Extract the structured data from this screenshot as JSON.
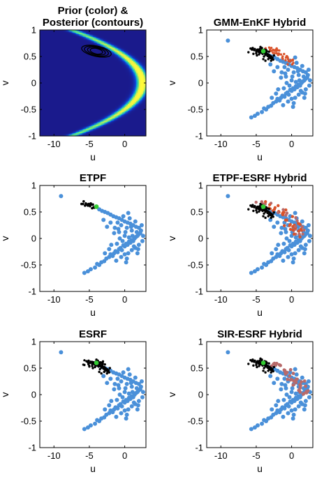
{
  "figure": {
    "colors": {
      "prior": "#4a90d9",
      "posterior_particles": "#000000",
      "hybrid_intermediate": "#d9532b",
      "truth_marker": "#33cc33",
      "contour": "#000000",
      "colormap": [
        "#1a1a8c",
        "#0c3fd6",
        "#10a8d8",
        "#4fe08c",
        "#e5f04a",
        "#fffa38"
      ]
    },
    "panels": [
      {
        "id": "prior",
        "title_lines": [
          "Prior (color) &",
          "Posterior (contours)"
        ],
        "kind": "density"
      },
      {
        "id": "gmm",
        "title_lines": [
          "GMM-EnKF Hybrid"
        ],
        "kind": "scatter",
        "overlay": "gmm"
      },
      {
        "id": "etpf",
        "title_lines": [
          "ETPF"
        ],
        "kind": "scatter",
        "overlay": "etpf"
      },
      {
        "id": "etpf_esrf",
        "title_lines": [
          "ETPF-ESRF Hybrid"
        ],
        "kind": "scatter",
        "overlay": "etpf_esrf"
      },
      {
        "id": "esrf",
        "title_lines": [
          "ESRF"
        ],
        "kind": "scatter",
        "overlay": "esrf"
      },
      {
        "id": "sir_esrf",
        "title_lines": [
          "SIR-ESRF Hybrid"
        ],
        "kind": "scatter",
        "overlay": "sir_esrf"
      }
    ]
  },
  "chart_data": {
    "type": "scatter",
    "xlabel": "u",
    "ylabel": "v",
    "xlim": [
      -12,
      3
    ],
    "ylim": [
      -1,
      1
    ],
    "xticks": [
      -10,
      -5,
      0
    ],
    "xtick_labels": [
      "-10",
      "-5",
      "0"
    ],
    "yticks": [
      1,
      0.5,
      0,
      -0.5,
      -1
    ],
    "ytick_labels": [
      "1",
      "0.5",
      "0",
      "-0.5",
      "-1"
    ],
    "density_curve": "u = 2.5 - 10*v^2",
    "posterior_center": {
      "u": -4.0,
      "v": 0.6
    },
    "truth": {
      "u": -4.0,
      "v": 0.6
    },
    "prior_samples": [
      [
        -9.0,
        0.8
      ],
      [
        -5.7,
        -0.65
      ],
      [
        -5.2,
        -0.62
      ],
      [
        -4.2,
        -0.55
      ],
      [
        -3.6,
        -0.5
      ],
      [
        -3.3,
        -0.45
      ],
      [
        -2.9,
        -0.43
      ],
      [
        -2.6,
        -0.38
      ],
      [
        -2.2,
        -0.35
      ],
      [
        -2.0,
        -0.3
      ],
      [
        -1.7,
        -0.33
      ],
      [
        -1.5,
        -0.28
      ],
      [
        -1.3,
        -0.24
      ],
      [
        -1.0,
        -0.26
      ],
      [
        -0.8,
        -0.2
      ],
      [
        -0.6,
        -0.18
      ],
      [
        -0.4,
        -0.22
      ],
      [
        -0.2,
        -0.13
      ],
      [
        0.0,
        -0.15
      ],
      [
        0.2,
        -0.1
      ],
      [
        0.4,
        -0.12
      ],
      [
        0.6,
        -0.06
      ],
      [
        0.8,
        -0.08
      ],
      [
        1.0,
        -0.03
      ],
      [
        1.2,
        -0.05
      ],
      [
        1.4,
        0.0
      ],
      [
        1.6,
        0.03
      ],
      [
        1.8,
        0.05
      ],
      [
        2.0,
        0.08
      ],
      [
        2.2,
        0.1
      ],
      [
        -0.5,
        -0.35
      ],
      [
        0.0,
        -0.3
      ],
      [
        0.5,
        -0.28
      ],
      [
        1.0,
        -0.22
      ],
      [
        1.5,
        -0.18
      ],
      [
        2.0,
        -0.12
      ],
      [
        2.5,
        -0.05
      ],
      [
        2.3,
        0.15
      ],
      [
        2.0,
        0.2
      ],
      [
        1.6,
        0.22
      ],
      [
        1.2,
        0.25
      ],
      [
        0.8,
        0.28
      ],
      [
        0.4,
        0.3
      ],
      [
        0.0,
        0.32
      ],
      [
        -0.4,
        0.35
      ],
      [
        -0.8,
        0.38
      ],
      [
        -1.2,
        0.4
      ],
      [
        -1.6,
        0.42
      ],
      [
        -2.0,
        0.45
      ],
      [
        -2.4,
        0.48
      ],
      [
        -2.8,
        0.5
      ],
      [
        -3.2,
        0.52
      ],
      [
        -3.6,
        0.55
      ],
      [
        -1.0,
        0.3
      ],
      [
        -0.5,
        0.25
      ],
      [
        0.3,
        0.2
      ],
      [
        1.0,
        0.15
      ],
      [
        1.7,
        0.12
      ],
      [
        -1.4,
        0.2
      ],
      [
        -0.8,
        0.12
      ],
      [
        0.0,
        0.05
      ],
      [
        0.6,
        0.02
      ],
      [
        1.3,
        -0.15
      ],
      [
        -0.3,
        -0.05
      ],
      [
        0.9,
        0.22
      ],
      [
        -2.2,
        -0.2
      ],
      [
        -1.1,
        -0.1
      ],
      [
        0.3,
        -0.38
      ],
      [
        1.8,
        -0.28
      ],
      [
        2.4,
        0.25
      ],
      [
        -2.0,
        0.3
      ],
      [
        -1.5,
        0.1
      ],
      [
        -0.7,
        0.0
      ],
      [
        0.1,
        0.12
      ],
      [
        -3.0,
        0.35
      ],
      [
        -2.5,
        0.22
      ],
      [
        0.7,
        0.38
      ],
      [
        1.5,
        0.32
      ],
      [
        -1.9,
        -0.12
      ],
      [
        -0.2,
        0.42
      ],
      [
        0.5,
        0.48
      ],
      [
        -4.8,
        -0.58
      ],
      [
        -3.9,
        -0.48
      ],
      [
        2.6,
        0.05
      ],
      [
        1.9,
        -0.2
      ],
      [
        -1.2,
        -0.42
      ],
      [
        0.2,
        -0.45
      ],
      [
        -2.8,
        -0.28
      ],
      [
        1.1,
        0.05
      ],
      [
        -0.9,
        0.18
      ]
    ],
    "posterior_samples": [
      [
        -5.8,
        0.65
      ],
      [
        -5.6,
        0.63
      ],
      [
        -5.5,
        0.66
      ],
      [
        -5.3,
        0.62
      ],
      [
        -5.2,
        0.64
      ],
      [
        -5.0,
        0.6
      ],
      [
        -4.9,
        0.62
      ],
      [
        -4.8,
        0.63
      ],
      [
        -4.7,
        0.59
      ],
      [
        -4.6,
        0.61
      ],
      [
        -4.5,
        0.64
      ],
      [
        -4.4,
        0.6
      ],
      [
        -4.3,
        0.57
      ],
      [
        -4.2,
        0.62
      ],
      [
        -4.1,
        0.55
      ],
      [
        -4.0,
        0.58
      ],
      [
        -3.9,
        0.6
      ],
      [
        -3.8,
        0.56
      ],
      [
        -3.7,
        0.53
      ],
      [
        -3.6,
        0.58
      ],
      [
        -3.5,
        0.55
      ],
      [
        -3.4,
        0.51
      ],
      [
        -3.3,
        0.54
      ],
      [
        -3.2,
        0.49
      ],
      [
        -3.1,
        0.52
      ],
      [
        -3.0,
        0.47
      ],
      [
        -2.9,
        0.5
      ],
      [
        -2.8,
        0.46
      ],
      [
        -2.7,
        0.48
      ],
      [
        -2.6,
        0.44
      ],
      [
        -4.6,
        0.54
      ],
      [
        -4.2,
        0.66
      ],
      [
        -3.8,
        0.63
      ],
      [
        -3.5,
        0.6
      ],
      [
        -5.0,
        0.56
      ],
      [
        -4.4,
        0.68
      ],
      [
        -3.3,
        0.45
      ],
      [
        -2.9,
        0.42
      ],
      [
        -4.9,
        0.52
      ],
      [
        -3.9,
        0.5
      ],
      [
        -4.5,
        0.57
      ],
      [
        -3.6,
        0.62
      ],
      [
        -6.1,
        0.58
      ],
      [
        -5.4,
        0.55
      ],
      [
        -2.5,
        0.52
      ],
      [
        -3.2,
        0.59
      ],
      [
        -4.0,
        0.45
      ],
      [
        -3.7,
        0.42
      ]
    ]
  }
}
